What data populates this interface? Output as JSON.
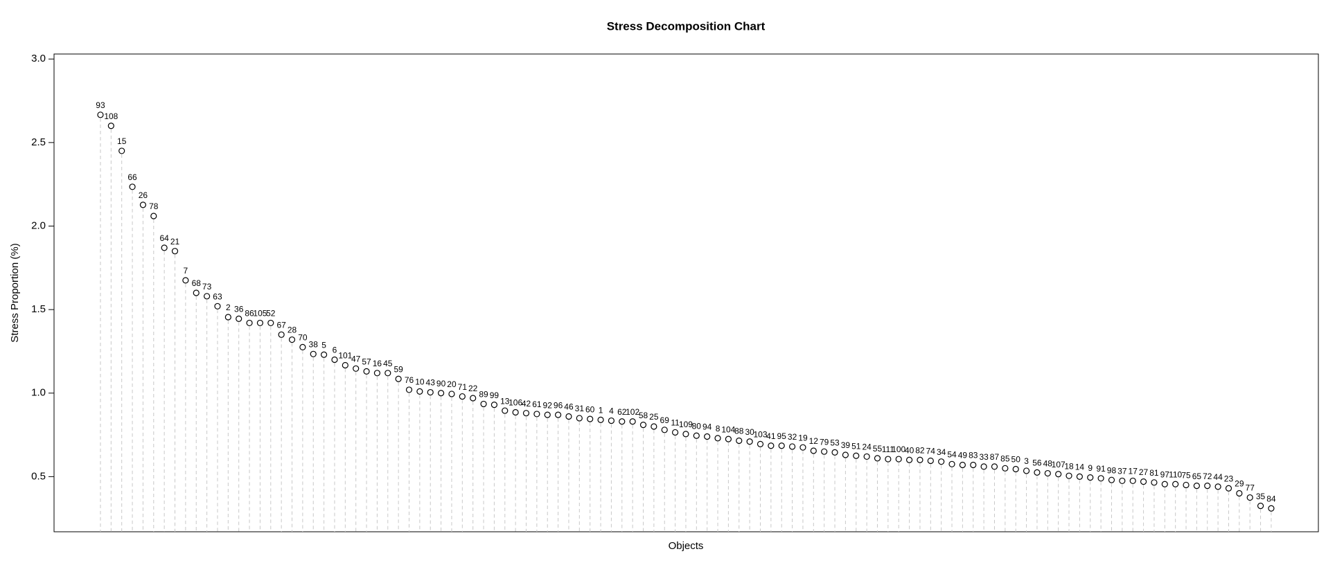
{
  "chart_data": {
    "type": "dotchart",
    "title": "Stress Decomposition Chart",
    "x_label": "Objects",
    "y_label": "Stress Proportion (%)",
    "categories": [
      "93",
      "108",
      "15",
      "66",
      "26",
      "78",
      "64",
      "21",
      "7",
      "68",
      "73",
      "63",
      "2",
      "36",
      "86",
      "105",
      "52",
      "67",
      "28",
      "70",
      "38",
      "5",
      "6",
      "101",
      "47",
      "57",
      "16",
      "45",
      "59",
      "76",
      "10",
      "43",
      "90",
      "20",
      "71",
      "22",
      "89",
      "99",
      "13",
      "106",
      "42",
      "61",
      "92",
      "96",
      "46",
      "31",
      "60",
      "1",
      "4",
      "62",
      "102",
      "58",
      "25",
      "69",
      "11",
      "109",
      "80",
      "94",
      "8",
      "104",
      "88",
      "30",
      "103",
      "41",
      "95",
      "32",
      "19",
      "12",
      "79",
      "53",
      "39",
      "51",
      "24",
      "55",
      "111",
      "100",
      "40",
      "82",
      "74",
      "34",
      "54",
      "49",
      "83",
      "33",
      "87",
      "85",
      "50",
      "3",
      "56",
      "48",
      "107",
      "18",
      "14",
      "9",
      "91",
      "98",
      "37",
      "17",
      "27",
      "81",
      "97",
      "110",
      "75",
      "65",
      "72",
      "44",
      "23",
      "29",
      "77",
      "35",
      "84"
    ],
    "values": [
      2.666,
      2.6,
      2.45,
      2.235,
      2.127,
      2.06,
      1.87,
      1.85,
      1.675,
      1.6,
      1.58,
      1.52,
      1.455,
      1.445,
      1.42,
      1.42,
      1.42,
      1.35,
      1.32,
      1.275,
      1.234,
      1.23,
      1.2,
      1.167,
      1.147,
      1.13,
      1.12,
      1.12,
      1.085,
      1.02,
      1.01,
      1.005,
      1.0,
      0.995,
      0.98,
      0.97,
      0.935,
      0.93,
      0.895,
      0.885,
      0.88,
      0.875,
      0.87,
      0.87,
      0.86,
      0.85,
      0.845,
      0.84,
      0.835,
      0.83,
      0.83,
      0.81,
      0.8,
      0.78,
      0.765,
      0.755,
      0.745,
      0.74,
      0.73,
      0.725,
      0.715,
      0.71,
      0.695,
      0.685,
      0.685,
      0.68,
      0.675,
      0.655,
      0.65,
      0.645,
      0.63,
      0.625,
      0.62,
      0.61,
      0.605,
      0.605,
      0.6,
      0.6,
      0.595,
      0.59,
      0.575,
      0.57,
      0.57,
      0.56,
      0.56,
      0.55,
      0.545,
      0.535,
      0.525,
      0.52,
      0.515,
      0.505,
      0.5,
      0.495,
      0.49,
      0.48,
      0.475,
      0.475,
      0.47,
      0.465,
      0.455,
      0.455,
      0.45,
      0.445,
      0.445,
      0.44,
      0.43,
      0.4,
      0.375,
      0.325,
      0.31
    ],
    "ylim": [
      0.17,
      3.03
    ],
    "yticks": [
      0.5,
      {
        "value": 1,
        "label": "1.0"
      },
      1.5,
      {
        "value": 2,
        "label": "2.0"
      },
      2.5,
      {
        "value": 3,
        "label": "3.0"
      }
    ],
    "color": "#000000",
    "drop_line_color": "#c8c8c8"
  }
}
